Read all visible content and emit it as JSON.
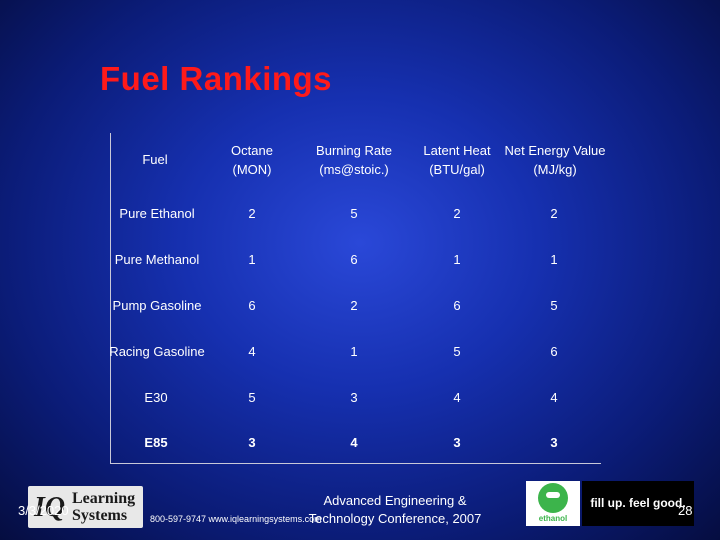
{
  "slide": {
    "title": "Fuel Rankings",
    "date": "3/3/2020",
    "page_number": "28",
    "phone_web": "800-597-9747  www.iqlearningsystems.com",
    "conference_line1": "Advanced Engineering &",
    "conference_line2": "Technology Conference, 2007",
    "left_logo_iq": "IQ",
    "left_logo_line1": "Learning",
    "left_logo_line2": "Systems",
    "ethanol_logo_label": "ethanol",
    "tagline": "fill up. feel good."
  },
  "table": {
    "headers": [
      [
        "Fuel"
      ],
      [
        "Octane",
        "(MON)"
      ],
      [
        "Burning Rate",
        "(ms@stoic.)"
      ],
      [
        "Latent Heat",
        "(BTU/gal)"
      ],
      [
        "Net Energy Value",
        "(MJ/kg)"
      ]
    ],
    "rows": [
      [
        "Pure Ethanol",
        "2",
        "5",
        "2",
        "2"
      ],
      [
        "Pure Methanol",
        "1",
        "6",
        "1",
        "1"
      ],
      [
        "Pump Gasoline",
        "6",
        "2",
        "6",
        "5"
      ],
      [
        "Racing Gasoline",
        "4",
        "1",
        "5",
        "6"
      ],
      [
        "E30",
        "5",
        "3",
        "4",
        "4"
      ],
      [
        "E85",
        "3",
        "4",
        "3",
        "3"
      ]
    ]
  },
  "colors": {
    "title": "#ff1a1a",
    "background": "#1630b0",
    "text": "#ffffff"
  }
}
